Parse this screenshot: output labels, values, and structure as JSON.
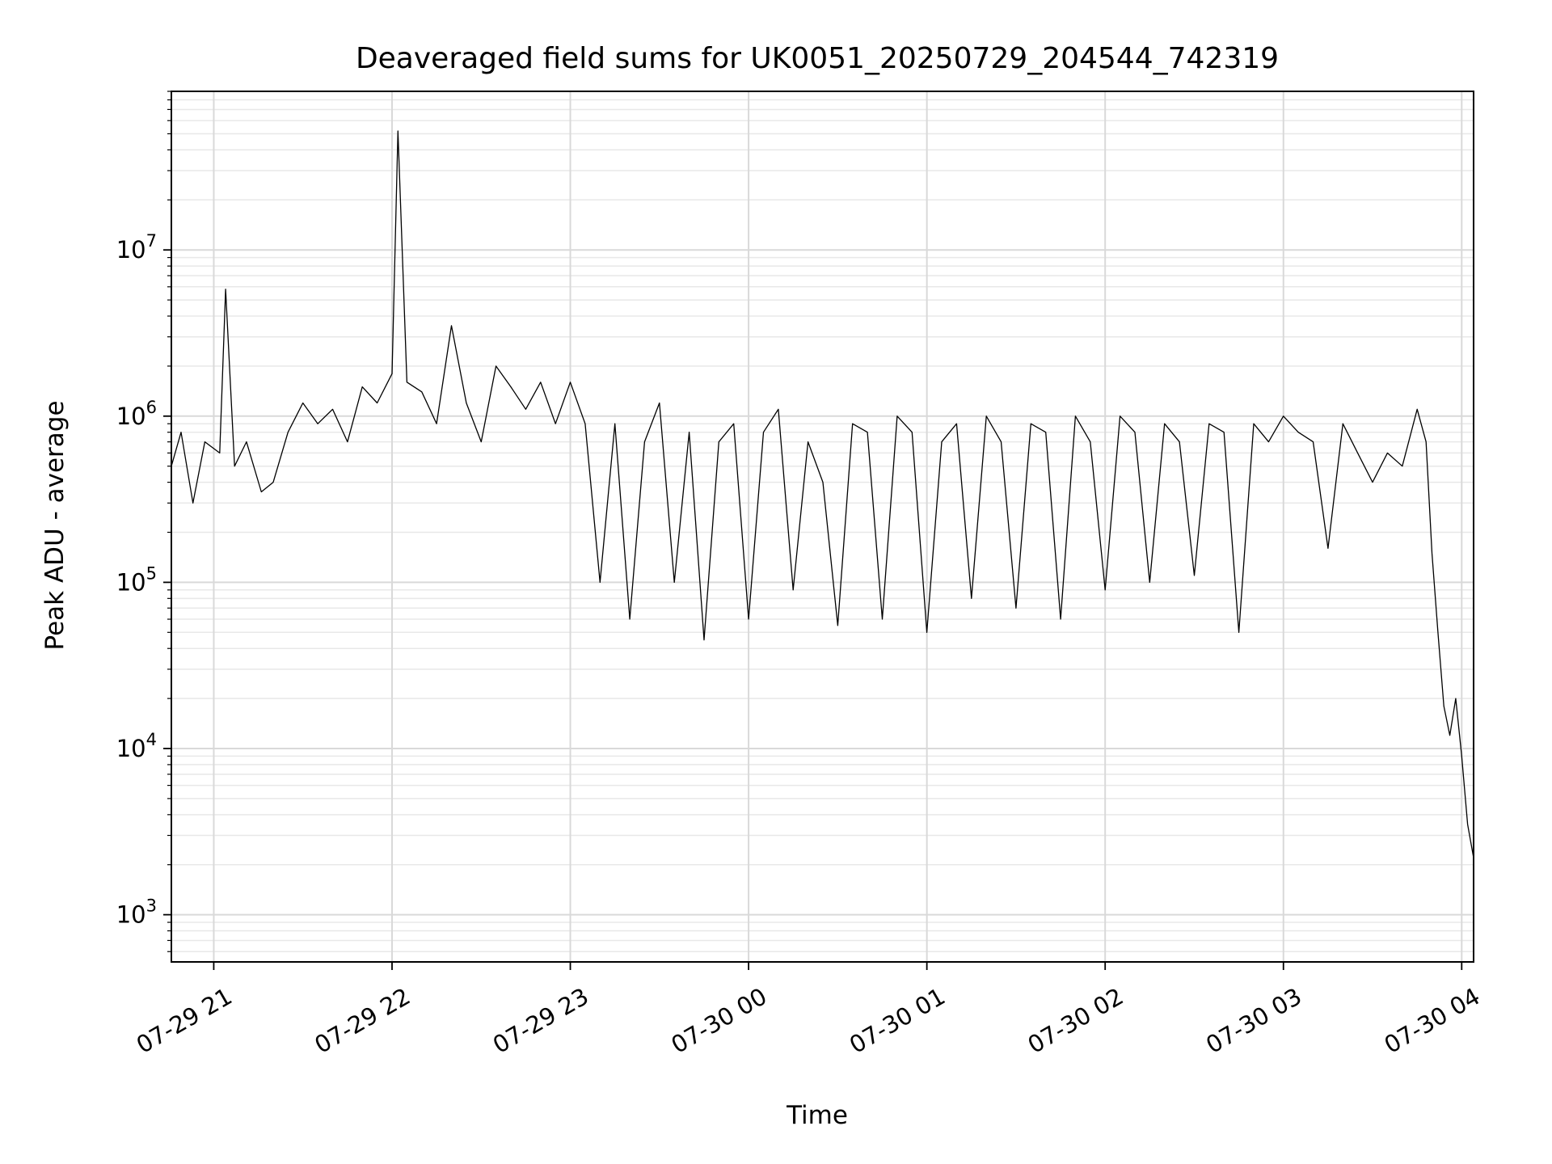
{
  "chart_data": {
    "type": "line",
    "title": "Deaveraged field sums for UK0051_20250729_204544_742319",
    "xlabel": "Time",
    "ylabel": "Peak ADU - average",
    "yscale": "log",
    "ylim": [
      520,
      90000000
    ],
    "xlim": [
      "2025-07-29 20:45:44",
      "2025-07-30 04:04:00"
    ],
    "grid": true,
    "x_ticks": [
      {
        "value": "2025-07-29 21:00",
        "label": "07-29 21"
      },
      {
        "value": "2025-07-29 22:00",
        "label": "07-29 22"
      },
      {
        "value": "2025-07-29 23:00",
        "label": "07-29 23"
      },
      {
        "value": "2025-07-30 00:00",
        "label": "07-30 00"
      },
      {
        "value": "2025-07-30 01:00",
        "label": "07-30 01"
      },
      {
        "value": "2025-07-30 02:00",
        "label": "07-30 02"
      },
      {
        "value": "2025-07-30 03:00",
        "label": "07-30 03"
      },
      {
        "value": "2025-07-30 04:00",
        "label": "07-30 04"
      }
    ],
    "y_ticks": [
      {
        "value": 1000,
        "base": "10",
        "exp": "3"
      },
      {
        "value": 10000,
        "base": "10",
        "exp": "4"
      },
      {
        "value": 100000,
        "base": "10",
        "exp": "5"
      },
      {
        "value": 1000000,
        "base": "10",
        "exp": "6"
      },
      {
        "value": 10000000,
        "base": "10",
        "exp": "7"
      }
    ],
    "series": [
      {
        "color": "#000000",
        "x": [
          "2025-07-29 20:45:44",
          "2025-07-29 20:49",
          "2025-07-29 20:53",
          "2025-07-29 20:57",
          "2025-07-29 21:02",
          "2025-07-29 21:04",
          "2025-07-29 21:07",
          "2025-07-29 21:11",
          "2025-07-29 21:16",
          "2025-07-29 21:20",
          "2025-07-29 21:25",
          "2025-07-29 21:30",
          "2025-07-29 21:35",
          "2025-07-29 21:40",
          "2025-07-29 21:45",
          "2025-07-29 21:50",
          "2025-07-29 21:55",
          "2025-07-29 22:00",
          "2025-07-29 22:02",
          "2025-07-29 22:05",
          "2025-07-29 22:10",
          "2025-07-29 22:15",
          "2025-07-29 22:20",
          "2025-07-29 22:25",
          "2025-07-29 22:30",
          "2025-07-29 22:35",
          "2025-07-29 22:40",
          "2025-07-29 22:45",
          "2025-07-29 22:50",
          "2025-07-29 22:55",
          "2025-07-29 23:00",
          "2025-07-29 23:05",
          "2025-07-29 23:10",
          "2025-07-29 23:15",
          "2025-07-29 23:20",
          "2025-07-29 23:25",
          "2025-07-29 23:30",
          "2025-07-29 23:35",
          "2025-07-29 23:40",
          "2025-07-29 23:45",
          "2025-07-29 23:50",
          "2025-07-29 23:55",
          "2025-07-30 00:00",
          "2025-07-30 00:05",
          "2025-07-30 00:10",
          "2025-07-30 00:15",
          "2025-07-30 00:20",
          "2025-07-30 00:25",
          "2025-07-30 00:30",
          "2025-07-30 00:35",
          "2025-07-30 00:40",
          "2025-07-30 00:45",
          "2025-07-30 00:50",
          "2025-07-30 00:55",
          "2025-07-30 01:00",
          "2025-07-30 01:05",
          "2025-07-30 01:10",
          "2025-07-30 01:15",
          "2025-07-30 01:20",
          "2025-07-30 01:25",
          "2025-07-30 01:30",
          "2025-07-30 01:35",
          "2025-07-30 01:40",
          "2025-07-30 01:45",
          "2025-07-30 01:50",
          "2025-07-30 01:55",
          "2025-07-30 02:00",
          "2025-07-30 02:05",
          "2025-07-30 02:10",
          "2025-07-30 02:15",
          "2025-07-30 02:20",
          "2025-07-30 02:25",
          "2025-07-30 02:30",
          "2025-07-30 02:35",
          "2025-07-30 02:40",
          "2025-07-30 02:45",
          "2025-07-30 02:50",
          "2025-07-30 02:55",
          "2025-07-30 03:00",
          "2025-07-30 03:05",
          "2025-07-30 03:10",
          "2025-07-30 03:15",
          "2025-07-30 03:20",
          "2025-07-30 03:25",
          "2025-07-30 03:30",
          "2025-07-30 03:35",
          "2025-07-30 03:40",
          "2025-07-30 03:45",
          "2025-07-30 03:48",
          "2025-07-30 03:50",
          "2025-07-30 03:52",
          "2025-07-30 03:54",
          "2025-07-30 03:56",
          "2025-07-30 03:58",
          "2025-07-30 04:00",
          "2025-07-30 04:02",
          "2025-07-30 04:04"
        ],
        "y": [
          500000,
          800000,
          300000,
          700000,
          600000,
          5800000,
          500000,
          700000,
          350000,
          400000,
          800000,
          1200000,
          900000,
          1100000,
          700000,
          1500000,
          1200000,
          1800000,
          52000000,
          1600000,
          1400000,
          900000,
          3500000,
          1200000,
          700000,
          2000000,
          1500000,
          1100000,
          1600000,
          900000,
          1600000,
          900000,
          100000,
          900000,
          60000,
          700000,
          1200000,
          100000,
          800000,
          45000,
          700000,
          900000,
          60000,
          800000,
          1100000,
          90000,
          700000,
          400000,
          55000,
          900000,
          800000,
          60000,
          1000000,
          800000,
          50000,
          700000,
          900000,
          80000,
          1000000,
          700000,
          70000,
          900000,
          800000,
          60000,
          1000000,
          700000,
          90000,
          1000000,
          800000,
          100000,
          900000,
          700000,
          110000,
          900000,
          800000,
          50000,
          900000,
          700000,
          1000000,
          800000,
          700000,
          160000,
          900000,
          600000,
          400000,
          600000,
          500000,
          1100000,
          700000,
          150000,
          50000,
          18000,
          12000,
          20000,
          9000,
          3500,
          2200
        ]
      }
    ]
  }
}
